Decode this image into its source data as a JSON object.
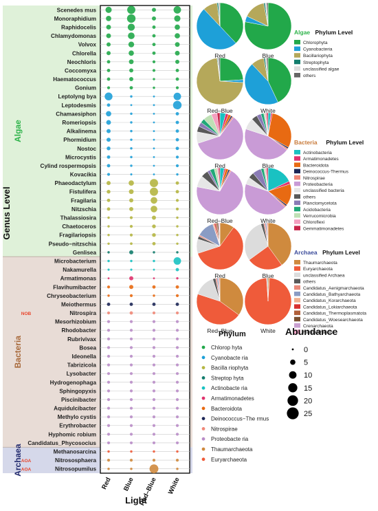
{
  "y_axis_title": "Genus Level",
  "x_axis_title": "Light",
  "conditions": [
    "Red",
    "Blue",
    "Red–Blue",
    "White"
  ],
  "groups": [
    {
      "name": "Algae",
      "band_color": "#dff1d9",
      "label_color": "#2eb34a"
    },
    {
      "name": "Bacteria",
      "band_color": "#e8dcd6",
      "label_color": "#a86a3c"
    },
    {
      "name": "Archaea",
      "band_color": "#d5d8ea",
      "label_color": "#222a6e"
    }
  ],
  "function_tags": [
    "NOB",
    "AOA",
    "AOA"
  ],
  "size_legend": {
    "title": "Abundance",
    "values": [
      0,
      5,
      10,
      15,
      20,
      25
    ]
  },
  "phylum_legend": {
    "title": "Phylum",
    "items": [
      {
        "label": "Chlorop hyta",
        "color": "#22a84a"
      },
      {
        "label": "Cyanobacte ria",
        "color": "#1ea0d8"
      },
      {
        "label": "Bacilla riophyta",
        "color": "#b5b642"
      },
      {
        "label": "Streptop hyta",
        "color": "#137d6d"
      },
      {
        "label": "Actinobacte ria",
        "color": "#19c2c2"
      },
      {
        "label": "Armatimonadetes",
        "color": "#e0336e"
      },
      {
        "label": "Bacteroidota",
        "color": "#e86a12"
      },
      {
        "label": "Deinococcus−The rmus",
        "color": "#1d2757"
      },
      {
        "label": "Nitrospirae",
        "color": "#f08878"
      },
      {
        "label": "Proteobacte ria",
        "color": "#b98dc8"
      },
      {
        "label": "Thaumarchaeota",
        "color": "#cf8a3e"
      },
      {
        "label": "Euryarchaeota",
        "color": "#ef5b3a"
      }
    ]
  },
  "pie_sections": [
    {
      "title_word": "Algae",
      "title_rest": "Phylum Level",
      "title_color": "#2eb34a",
      "legend": [
        {
          "label": "Chlorophyta",
          "color": "#22a84a"
        },
        {
          "label": "Cyanobacteria",
          "color": "#1ea0d8"
        },
        {
          "label": "Bacillariophyta",
          "color": "#b5a85a"
        },
        {
          "label": "Streptophyta",
          "color": "#137d6d"
        },
        {
          "label": "unclassified algae",
          "color": "#dddddd"
        },
        {
          "label": "others",
          "color": "#666666"
        }
      ],
      "pies": [
        {
          "label": "Red",
          "values": [
            38,
            50,
            10,
            1,
            0.5,
            0.5
          ]
        },
        {
          "label": "Blue",
          "values": [
            78,
            4,
            15,
            1,
            1,
            1
          ]
        },
        {
          "label": "Red–Blue",
          "values": [
            24,
            2,
            72,
            0.5,
            0.5,
            1
          ]
        },
        {
          "label": "White",
          "values": [
            43,
            45,
            9,
            1,
            1,
            1
          ]
        }
      ]
    },
    {
      "title_word": "Bacteria",
      "title_rest": "Phylum Level",
      "title_color": "#c87a3a",
      "legend": [
        {
          "label": "Actinobacteria",
          "color": "#19c2c2"
        },
        {
          "label": "Armatimonadetes",
          "color": "#e0336e"
        },
        {
          "label": "Bacteroidota",
          "color": "#e86a12"
        },
        {
          "label": "Deinococcus-Thermus",
          "color": "#1d2757"
        },
        {
          "label": "Nitrospirae",
          "color": "#f08878"
        },
        {
          "label": "Proteobacteria",
          "color": "#c99bd6"
        },
        {
          "label": "unclassified bacteria",
          "color": "#e6e6e6"
        },
        {
          "label": "others",
          "color": "#595959"
        },
        {
          "label": "Planctomycetota",
          "color": "#8a7bb6"
        },
        {
          "label": "Acidobacteria",
          "color": "#20a878"
        },
        {
          "label": "Verrucomicrobia",
          "color": "#bfe0b5"
        },
        {
          "label": "Chloroflexi",
          "color": "#f4a0c0"
        },
        {
          "label": "Gemmatimonadetes",
          "color": "#c8254a"
        }
      ],
      "pies": [
        {
          "label": "Red",
          "values": [
            4,
            2,
            2,
            1,
            1,
            60,
            8,
            4,
            3,
            3,
            6,
            4,
            2
          ]
        },
        {
          "label": "Blue",
          "values": [
            2,
            1,
            30,
            1,
            1,
            45,
            8,
            4,
            3,
            2,
            1,
            1,
            1
          ]
        },
        {
          "label": "Red–Blue",
          "values": [
            3,
            1,
            2,
            1,
            1,
            70,
            8,
            5,
            2,
            3,
            2,
            1,
            1
          ]
        },
        {
          "label": "White",
          "values": [
            18,
            2,
            15,
            1,
            1,
            43,
            5,
            4,
            6,
            2,
            1,
            1,
            1
          ]
        }
      ]
    },
    {
      "title_word": "Archaea",
      "title_rest": "Phylum Level",
      "title_color": "#3a4a9a",
      "legend": [
        {
          "label": "Thaumarchaeota",
          "color": "#cf8a3e"
        },
        {
          "label": "Euryarchaeota",
          "color": "#ef5b3a"
        },
        {
          "label": "unclassified Archaea",
          "color": "#dcdcdc"
        },
        {
          "label": "others",
          "color": "#5a5a5a"
        },
        {
          "label": "Candidatus_Aenigmarchaeota",
          "color": "#e9897a"
        },
        {
          "label": "Candidatus_Bathyarchaeota",
          "color": "#8a9cc4"
        },
        {
          "label": "Candidatus_Korarchaeota",
          "color": "#f0b090"
        },
        {
          "label": "Candidatus_Lokiarchaeota",
          "color": "#d83030"
        },
        {
          "label": "Candidatus_Thermoplasmatota",
          "color": "#b0603a"
        },
        {
          "label": "Candidatus_Woesearchaeota",
          "color": "#7a5030"
        },
        {
          "label": "Crenarchaeota",
          "color": "#c9a0d0"
        },
        {
          "label": "Nanoarchaeota",
          "color": "#f2a8c8"
        }
      ],
      "pies": [
        {
          "label": "Red",
          "values": [
            10,
            60,
            10,
            2,
            1,
            12,
            1,
            1,
            1,
            1,
            0.5,
            0.5
          ]
        },
        {
          "label": "Blue",
          "values": [
            40,
            25,
            30,
            2,
            1,
            1,
            0.5,
            0.5,
            0,
            0,
            0,
            0
          ]
        },
        {
          "label": "Red–Blue",
          "values": [
            35,
            45,
            15,
            2,
            1,
            1,
            0.5,
            0.5,
            0,
            0,
            0,
            0
          ]
        },
        {
          "label": "White",
          "values": [
            1,
            98,
            0.5,
            0.5,
            0,
            0,
            0,
            0,
            0,
            0,
            0,
            0
          ]
        }
      ]
    }
  ],
  "chart_data": {
    "type": "scatter",
    "description_kind": "bubble matrix",
    "x": [
      "Red",
      "Blue",
      "Red–Blue",
      "White"
    ],
    "rows": [
      {
        "genus": "Scenedes mus",
        "group": "Algae",
        "phylum": "Chlorop hyta",
        "values": [
          7,
          12,
          3,
          10
        ]
      },
      {
        "genus": "Monoraphidium",
        "group": "Algae",
        "phylum": "Chlorop hyta",
        "values": [
          5,
          13,
          3,
          7
        ]
      },
      {
        "genus": "Raphidocelis",
        "group": "Algae",
        "phylum": "Chlorop hyta",
        "values": [
          4,
          9,
          2,
          5
        ]
      },
      {
        "genus": "Chlamydomonas",
        "group": "Algae",
        "phylum": "Chlorop hyta",
        "values": [
          4,
          8,
          2,
          5
        ]
      },
      {
        "genus": "Volvox",
        "group": "Algae",
        "phylum": "Chlorop hyta",
        "values": [
          3,
          6,
          2,
          4
        ]
      },
      {
        "genus": "Chlorella",
        "group": "Algae",
        "phylum": "Chlorop hyta",
        "values": [
          3,
          5,
          2,
          4
        ]
      },
      {
        "genus": "Neochloris",
        "group": "Algae",
        "phylum": "Chlorop hyta",
        "values": [
          2,
          4,
          1.5,
          3
        ]
      },
      {
        "genus": "Coccomyxa",
        "group": "Algae",
        "phylum": "Chlorop hyta",
        "values": [
          2,
          3,
          1.5,
          2
        ]
      },
      {
        "genus": "Haematococcus",
        "group": "Algae",
        "phylum": "Chlorop hyta",
        "values": [
          2,
          3,
          1,
          2
        ]
      },
      {
        "genus": "Gonium",
        "group": "Algae",
        "phylum": "Chlorop hyta",
        "values": [
          1.5,
          2,
          1,
          1.5
        ]
      },
      {
        "genus": "Leptolyng bya",
        "group": "Algae",
        "phylum": "Cyanobacte ria",
        "values": [
          11,
          1,
          0.5,
          10
        ]
      },
      {
        "genus": "Leptodesmis",
        "group": "Algae",
        "phylum": "Cyanobacte ria",
        "values": [
          2,
          0.5,
          0.3,
          13
        ]
      },
      {
        "genus": "Chamaesiphon",
        "group": "Algae",
        "phylum": "Cyanobacte ria",
        "values": [
          5,
          1,
          0.5,
          2
        ]
      },
      {
        "genus": "Romeriopsis",
        "group": "Algae",
        "phylum": "Cyanobacte ria",
        "values": [
          4,
          1,
          0.5,
          2
        ]
      },
      {
        "genus": "Alkalinema",
        "group": "Algae",
        "phylum": "Cyanobacte ria",
        "values": [
          3,
          1,
          0.5,
          2
        ]
      },
      {
        "genus": "Phormidium",
        "group": "Algae",
        "phylum": "Cyanobacte ria",
        "values": [
          3,
          1,
          0.5,
          2
        ]
      },
      {
        "genus": "Nostoc",
        "group": "Algae",
        "phylum": "Cyanobacte ria",
        "values": [
          2.5,
          1,
          0.5,
          2
        ]
      },
      {
        "genus": "Microcystis",
        "group": "Algae",
        "phylum": "Cyanobacte ria",
        "values": [
          2,
          1,
          0.5,
          1.5
        ]
      },
      {
        "genus": "Cylind rospermopsis",
        "group": "Algae",
        "phylum": "Cyanobacte ria",
        "values": [
          2,
          1,
          0.5,
          1.5
        ]
      },
      {
        "genus": "Kovacikia",
        "group": "Algae",
        "phylum": "Cyanobacte ria",
        "values": [
          1.5,
          0.8,
          0.5,
          1
        ]
      },
      {
        "genus": "Phaeodactylum",
        "group": "Algae",
        "phylum": "Bacilla riophyta",
        "values": [
          3,
          5,
          12,
          2
        ]
      },
      {
        "genus": "Fistulifera",
        "group": "Algae",
        "phylum": "Bacilla riophyta",
        "values": [
          2.5,
          4,
          12,
          2
        ]
      },
      {
        "genus": "Fragilaria",
        "group": "Algae",
        "phylum": "Bacilla riophyta",
        "values": [
          2,
          3,
          8,
          1.5
        ]
      },
      {
        "genus": "Nitzschia",
        "group": "Algae",
        "phylum": "Bacilla riophyta",
        "values": [
          2,
          3,
          8,
          1.5
        ]
      },
      {
        "genus": "Thalassiosira",
        "group": "Algae",
        "phylum": "Bacilla riophyta",
        "values": [
          1,
          1.5,
          3,
          1
        ]
      },
      {
        "genus": "Chaetoceros",
        "group": "Algae",
        "phylum": "Bacilla riophyta",
        "values": [
          1,
          1.5,
          2.5,
          1
        ]
      },
      {
        "genus": "Fragilariopsis",
        "group": "Algae",
        "phylum": "Bacilla riophyta",
        "values": [
          1,
          1.5,
          2.5,
          1
        ]
      },
      {
        "genus": "Pseudo−nitzschia",
        "group": "Algae",
        "phylum": "Bacilla riophyta",
        "values": [
          1,
          1.2,
          2,
          1
        ]
      },
      {
        "genus": "Genlisea",
        "group": "Algae",
        "phylum": "Streptop hyta",
        "values": [
          1,
          3,
          1,
          1
        ]
      },
      {
        "genus": "Microbacterium",
        "group": "Bacteria",
        "phylum": "Actinobacte ria",
        "values": [
          1,
          1,
          1,
          10
        ]
      },
      {
        "genus": "Nakamurella",
        "group": "Bacteria",
        "phylum": "Actinobacte ria",
        "values": [
          0.8,
          0.8,
          0.5,
          2
        ]
      },
      {
        "genus": "Armatimonas",
        "group": "Bacteria",
        "phylum": "Armatimonadetes",
        "values": [
          0.5,
          3,
          0.5,
          1
        ]
      },
      {
        "genus": "Flavihumibacter",
        "group": "Bacteria",
        "phylum": "Bacteroidota",
        "values": [
          1.5,
          3,
          2,
          2
        ]
      },
      {
        "genus": "Chryseobacterium",
        "group": "Bacteria",
        "phylum": "Bacteroidota",
        "values": [
          1,
          1.5,
          1,
          1.5
        ]
      },
      {
        "genus": "Meiothermus",
        "group": "Bacteria",
        "phylum": "Deinococcus−The rmus",
        "values": [
          2,
          2,
          2,
          2
        ]
      },
      {
        "genus": "Nitrospira",
        "group": "Bacteria",
        "phylum": "Nitrospirae",
        "values": [
          1.5,
          2,
          1.5,
          1.5
        ]
      },
      {
        "genus": "Mesorhizobium",
        "group": "Bacteria",
        "phylum": "Proteobacte ria",
        "values": [
          1.5,
          1.5,
          1.5,
          1.5
        ]
      },
      {
        "genus": "Rhodobacter",
        "group": "Bacteria",
        "phylum": "Proteobacte ria",
        "values": [
          1.5,
          1.5,
          1.5,
          1.5
        ]
      },
      {
        "genus": "Rubrivivax",
        "group": "Bacteria",
        "phylum": "Proteobacte ria",
        "values": [
          1.5,
          1.5,
          1.5,
          1.5
        ]
      },
      {
        "genus": "Bosea",
        "group": "Bacteria",
        "phylum": "Proteobacte ria",
        "values": [
          1.5,
          1.5,
          1.5,
          1.5
        ]
      },
      {
        "genus": "Ideonella",
        "group": "Bacteria",
        "phylum": "Proteobacte ria",
        "values": [
          1.5,
          1.5,
          1.5,
          1.5
        ]
      },
      {
        "genus": "Tabrizicola",
        "group": "Bacteria",
        "phylum": "Proteobacte ria",
        "values": [
          1.5,
          1.5,
          1.5,
          1.5
        ]
      },
      {
        "genus": "Lysobacter",
        "group": "Bacteria",
        "phylum": "Proteobacte ria",
        "values": [
          1.5,
          1.5,
          1.5,
          1.5
        ]
      },
      {
        "genus": "Hydrogenophaga",
        "group": "Bacteria",
        "phylum": "Proteobacte ria",
        "values": [
          1.5,
          1.5,
          1.5,
          1.5
        ]
      },
      {
        "genus": "Sphingopyxis",
        "group": "Bacteria",
        "phylum": "Proteobacte ria",
        "values": [
          1.5,
          1.5,
          1.5,
          1.5
        ]
      },
      {
        "genus": "Piscinibacter",
        "group": "Bacteria",
        "phylum": "Proteobacte ria",
        "values": [
          1.5,
          1.5,
          1.5,
          1.5
        ]
      },
      {
        "genus": "Aquidulcibacter",
        "group": "Bacteria",
        "phylum": "Proteobacte ria",
        "values": [
          1.5,
          1.5,
          1.5,
          1.5
        ]
      },
      {
        "genus": "Methylo cystis",
        "group": "Bacteria",
        "phylum": "Proteobacte ria",
        "values": [
          1.5,
          1.5,
          1.5,
          1.5
        ]
      },
      {
        "genus": "Erythrobacter",
        "group": "Bacteria",
        "phylum": "Proteobacte ria",
        "values": [
          1.5,
          1.5,
          1.5,
          1.5
        ]
      },
      {
        "genus": "Hyphomic robium",
        "group": "Bacteria",
        "phylum": "Proteobacte ria",
        "values": [
          1.5,
          1.5,
          1.5,
          1.5
        ]
      },
      {
        "genus": "Candidatus_Phycosocius",
        "group": "Bacteria",
        "phylum": "Proteobacte ria",
        "values": [
          1.5,
          1.5,
          1.5,
          1.5
        ]
      },
      {
        "genus": "Methanosarcina",
        "group": "Archaea",
        "phylum": "Euryarchaeota",
        "values": [
          1,
          1,
          1,
          1
        ]
      },
      {
        "genus": "Nitrososphaera",
        "group": "Archaea",
        "phylum": "Thaumarchaeota",
        "values": [
          1.5,
          1.5,
          1.5,
          1.5
        ]
      },
      {
        "genus": "Nitrosopumilus",
        "group": "Archaea",
        "phylum": "Thaumarchaeota",
        "values": [
          1,
          1,
          14,
          1
        ]
      }
    ]
  }
}
